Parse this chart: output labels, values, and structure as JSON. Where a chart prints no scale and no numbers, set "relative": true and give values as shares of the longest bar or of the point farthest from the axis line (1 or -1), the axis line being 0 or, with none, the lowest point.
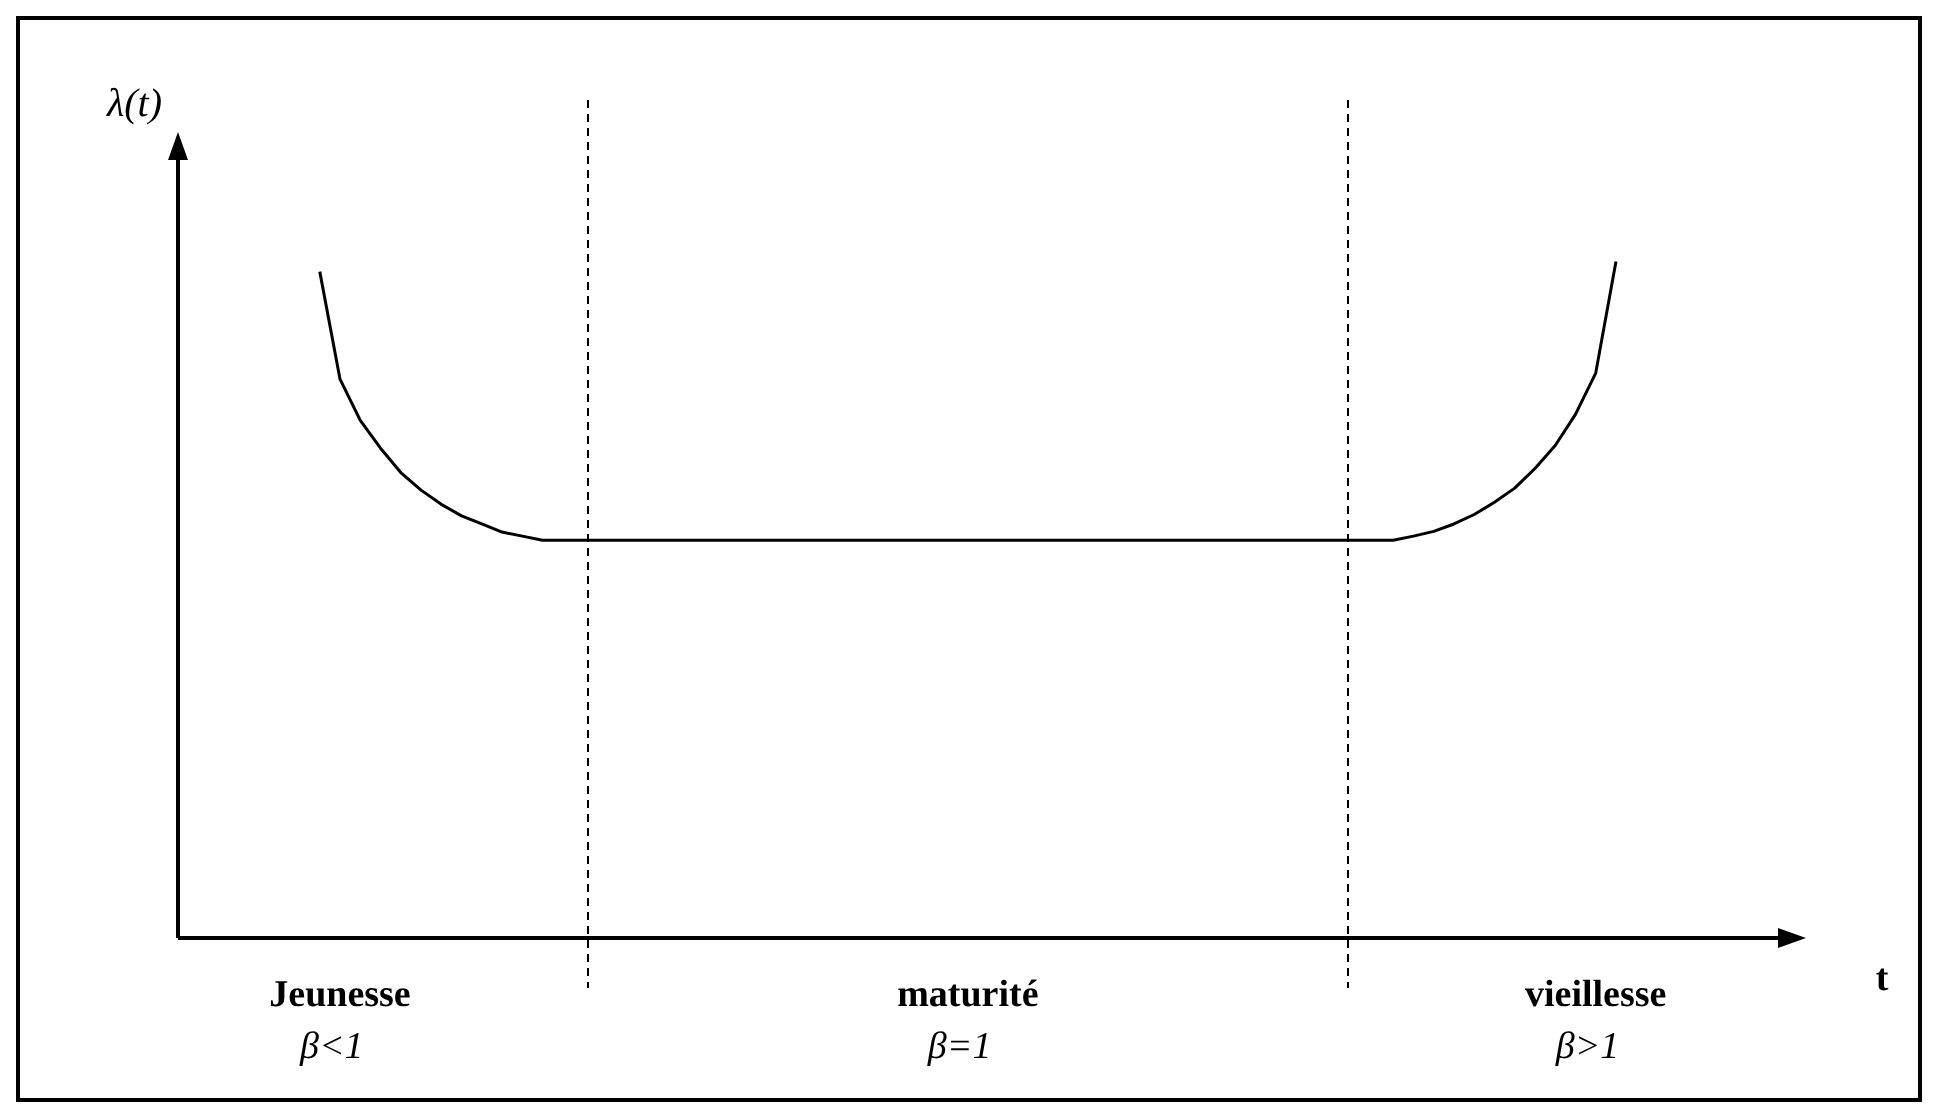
{
  "chart_data": {
    "type": "line",
    "relative": true,
    "ylabel": "λ(t)",
    "xlabel": "t",
    "marker": "none",
    "line_style": "solid",
    "color": "#000000",
    "categories": [
      null,
      null,
      null,
      null,
      null,
      null,
      null,
      null,
      "Jeunesse\nβ<1",
      null,
      null,
      null,
      null,
      null,
      null,
      null,
      null,
      null,
      null,
      null,
      null,
      null,
      null,
      null,
      null,
      null,
      null,
      null,
      null,
      null,
      null,
      null,
      null,
      null,
      null,
      null,
      null,
      null,
      null,
      "maturité\nβ=1",
      null,
      null,
      null,
      null,
      null,
      null,
      null,
      null,
      null,
      null,
      null,
      null,
      null,
      null,
      null,
      null,
      null,
      null,
      null,
      null,
      null,
      null,
      null,
      null,
      null,
      null,
      null,
      null,
      null,
      null,
      "vieillesse\nβ>1",
      null,
      null,
      null,
      null,
      null,
      null,
      null,
      null,
      null
    ],
    "values": [
      null,
      null,
      null,
      null,
      null,
      null,
      null,
      0.985,
      0.826,
      0.765,
      0.724,
      0.688,
      0.662,
      0.641,
      0.624,
      0.612,
      0.6,
      0.594,
      0.588,
      0.588,
      0.588,
      0.588,
      0.588,
      0.588,
      0.588,
      0.588,
      0.588,
      0.588,
      0.588,
      0.588,
      0.588,
      0.588,
      0.588,
      0.588,
      0.588,
      0.588,
      0.588,
      0.588,
      0.588,
      0.588,
      0.588,
      0.588,
      0.588,
      0.588,
      0.588,
      0.588,
      0.588,
      0.588,
      0.588,
      0.588,
      0.588,
      0.588,
      0.588,
      0.588,
      0.588,
      0.588,
      0.588,
      0.588,
      0.588,
      0.588,
      0.588,
      0.594,
      0.601,
      0.612,
      0.626,
      0.644,
      0.665,
      0.694,
      0.728,
      0.774,
      0.835,
      1,
      null,
      null,
      null,
      null,
      null,
      null,
      null,
      null
    ]
  }
}
